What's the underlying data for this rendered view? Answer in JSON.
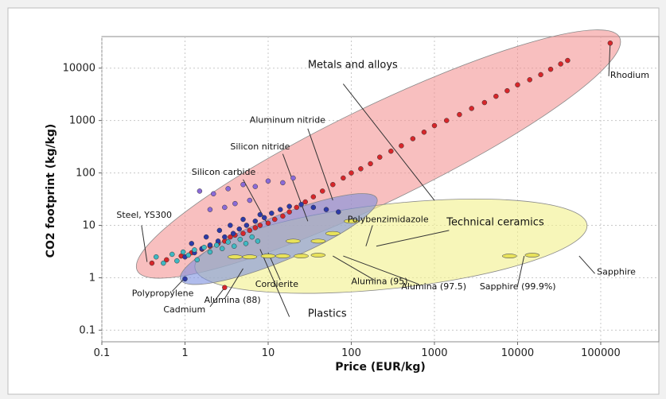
{
  "chart_data": {
    "type": "scatter",
    "xlabel": "Price (EUR/kg)",
    "ylabel": "CO2 footprint (kg/kg)",
    "xscale": "log",
    "yscale": "log",
    "xlim": [
      0.1,
      500000
    ],
    "ylim": [
      0.06,
      40000
    ],
    "x_ticks": [
      {
        "value": 0.1,
        "label": "0.1"
      },
      {
        "value": 1,
        "label": "1"
      },
      {
        "value": 10,
        "label": "10"
      },
      {
        "value": 100,
        "label": "100"
      },
      {
        "value": 1000,
        "label": "1000"
      },
      {
        "value": 10000,
        "label": "10000"
      },
      {
        "value": 100000,
        "label": "100000"
      }
    ],
    "y_ticks": [
      {
        "value": 0.1,
        "label": "0.1"
      },
      {
        "value": 1,
        "label": "1"
      },
      {
        "value": 10,
        "label": "10"
      },
      {
        "value": 100,
        "label": "100"
      },
      {
        "value": 1000,
        "label": "1000"
      },
      {
        "value": 10000,
        "label": "10000"
      }
    ],
    "grid": true,
    "families": [
      {
        "name": "Metals and alloys",
        "color": "#f28b8b",
        "opacity": 0.55,
        "x_range": [
          0.3,
          150000
        ],
        "y_range": [
          1.5,
          35000
        ]
      },
      {
        "name": "Technical ceramics",
        "color": "#f2f08a",
        "opacity": 0.6,
        "x_range": [
          1.5,
          60000
        ],
        "y_range": [
          1.6,
          10
        ]
      },
      {
        "name": "Plastics",
        "color": "#7b8fe0",
        "opacity": 0.6,
        "x_range": [
          1,
          180
        ],
        "y_range": [
          1,
          30
        ]
      }
    ],
    "series": [
      {
        "color": "#d7262a",
        "points": [
          [
            0.4,
            1.9
          ],
          [
            0.6,
            2.2
          ],
          [
            0.9,
            2.6
          ],
          [
            1.2,
            3
          ],
          [
            1.6,
            3.5
          ],
          [
            2,
            4
          ],
          [
            2.5,
            4.5
          ],
          [
            3,
            5
          ],
          [
            3.5,
            6
          ],
          [
            4,
            6.5
          ],
          [
            5,
            7
          ],
          [
            6,
            8
          ],
          [
            7,
            9
          ],
          [
            8,
            10
          ],
          [
            10,
            11
          ],
          [
            12,
            13
          ],
          [
            15,
            15
          ],
          [
            18,
            18
          ],
          [
            22,
            22
          ],
          [
            28,
            28
          ],
          [
            35,
            35
          ],
          [
            45,
            45
          ],
          [
            60,
            60
          ],
          [
            80,
            80
          ],
          [
            100,
            100
          ],
          [
            130,
            120
          ],
          [
            170,
            150
          ],
          [
            220,
            200
          ],
          [
            300,
            260
          ],
          [
            400,
            330
          ],
          [
            550,
            450
          ],
          [
            750,
            600
          ],
          [
            1000,
            800
          ],
          [
            1400,
            1000
          ],
          [
            2000,
            1300
          ],
          [
            2800,
            1700
          ],
          [
            4000,
            2200
          ],
          [
            5500,
            2900
          ],
          [
            7500,
            3700
          ],
          [
            10000,
            4800
          ],
          [
            14000,
            6000
          ],
          [
            19000,
            7500
          ],
          [
            25000,
            9500
          ],
          [
            33000,
            12000
          ],
          [
            40000,
            14000
          ],
          [
            130000,
            30000
          ],
          [
            3,
            0.65
          ]
        ]
      },
      {
        "color": "#2d3aa8",
        "points": [
          [
            1,
            2.5
          ],
          [
            1.3,
            3
          ],
          [
            1.6,
            3.6
          ],
          [
            2,
            4.2
          ],
          [
            2.5,
            5
          ],
          [
            3,
            6
          ],
          [
            3.8,
            7
          ],
          [
            4.5,
            8.5
          ],
          [
            5.5,
            10
          ],
          [
            7,
            12
          ],
          [
            9,
            14
          ],
          [
            11,
            17
          ],
          [
            14,
            20
          ],
          [
            18,
            23
          ],
          [
            25,
            25
          ],
          [
            35,
            22
          ],
          [
            50,
            20
          ],
          [
            70,
            18
          ],
          [
            1.2,
            4.5
          ],
          [
            1.8,
            6
          ],
          [
            2.6,
            8
          ],
          [
            3.5,
            10
          ],
          [
            5,
            13
          ],
          [
            8,
            16
          ],
          [
            1,
            0.95
          ]
        ]
      },
      {
        "color": "#8a6ad8",
        "points": [
          [
            1.5,
            45
          ],
          [
            2.2,
            40
          ],
          [
            3.3,
            50
          ],
          [
            5,
            60
          ],
          [
            7,
            55
          ],
          [
            10,
            70
          ],
          [
            15,
            65
          ],
          [
            20,
            80
          ],
          [
            2,
            20
          ],
          [
            3,
            22
          ],
          [
            4,
            26
          ],
          [
            6,
            30
          ]
        ]
      },
      {
        "color": "#3fb8c2",
        "points": [
          [
            0.45,
            2.5
          ],
          [
            0.55,
            1.9
          ],
          [
            0.7,
            2.8
          ],
          [
            0.8,
            2.1
          ],
          [
            0.95,
            3.1
          ],
          [
            1.1,
            2.7
          ],
          [
            1.3,
            3.4
          ],
          [
            1.4,
            2.2
          ],
          [
            1.7,
            3.8
          ],
          [
            2,
            3.1
          ],
          [
            2.4,
            4.2
          ],
          [
            2.8,
            3.6
          ],
          [
            3.3,
            4.8
          ],
          [
            3.9,
            4
          ],
          [
            4.6,
            5.4
          ],
          [
            5.4,
            4.5
          ],
          [
            6.4,
            6
          ],
          [
            7.5,
            5
          ]
        ]
      }
    ],
    "ceramic_marks": [
      [
        4,
        2.5
      ],
      [
        6,
        2.5
      ],
      [
        10,
        2.6
      ],
      [
        15,
        2.6
      ],
      [
        25,
        2.6
      ],
      [
        40,
        2.7
      ],
      [
        20,
        5
      ],
      [
        40,
        5
      ],
      [
        60,
        7
      ],
      [
        100,
        12
      ],
      [
        8000,
        2.6
      ],
      [
        15000,
        2.7
      ]
    ],
    "labels": [
      {
        "text": "Metals and alloys",
        "x": 30,
        "y": 10000,
        "size": 13
      },
      {
        "text": "Technical ceramics",
        "x": 1400,
        "y": 10,
        "size": 13
      },
      {
        "text": "Plastics",
        "x": 30,
        "y": 0.18,
        "size": 13
      },
      {
        "text": "Aluminum nitride",
        "x": 6,
        "y": 900,
        "size": 11
      },
      {
        "text": "Silicon nitride",
        "x": 3.5,
        "y": 280,
        "size": 11
      },
      {
        "text": "Silicon carbide",
        "x": 1.2,
        "y": 92,
        "size": 11
      },
      {
        "text": "Steel, YS300",
        "x": 0.15,
        "y": 14,
        "size": 11
      },
      {
        "text": "Polybenzimidazole",
        "x": 90,
        "y": 11.5,
        "size": 11
      },
      {
        "text": "Rhodium",
        "x": 130000,
        "y": 6500,
        "size": 11
      },
      {
        "text": "Sapphire",
        "x": 90000,
        "y": 1.15,
        "size": 11
      },
      {
        "text": "Sapphire (99.9%)",
        "x": 3500,
        "y": 0.6,
        "size": 11
      },
      {
        "text": "Alumina (97.5)",
        "x": 400,
        "y": 0.6,
        "size": 11
      },
      {
        "text": "Alumina (95)",
        "x": 100,
        "y": 0.75,
        "size": 11
      },
      {
        "text": "Cordierite",
        "x": 7,
        "y": 0.67,
        "size": 11
      },
      {
        "text": "Polypropylene",
        "x": 0.23,
        "y": 0.45,
        "size": 11
      },
      {
        "text": "Alumina (88)",
        "x": 1.7,
        "y": 0.33,
        "size": 11
      },
      {
        "text": "Cadmium",
        "x": 0.55,
        "y": 0.22,
        "size": 11
      }
    ],
    "callouts": [
      {
        "from": [
          80,
          5000
        ],
        "to": [
          1000,
          30
        ]
      },
      {
        "from": [
          1500,
          8
        ],
        "to": [
          200,
          4
        ]
      },
      {
        "from": [
          18,
          0.18
        ],
        "to": [
          8,
          3.5
        ]
      },
      {
        "from": [
          30,
          700
        ],
        "to": [
          60,
          30
        ]
      },
      {
        "from": [
          15,
          230
        ],
        "to": [
          30,
          12
        ]
      },
      {
        "from": [
          5,
          75
        ],
        "to": [
          10,
          10
        ]
      },
      {
        "from": [
          0.3,
          10
        ],
        "to": [
          0.35,
          2
        ]
      },
      {
        "from": [
          180,
          10
        ],
        "to": [
          150,
          4
        ]
      },
      {
        "from": [
          125000,
          7000
        ],
        "to": [
          130000,
          30000
        ]
      },
      {
        "from": [
          85000,
          1.2
        ],
        "to": [
          55000,
          2.6
        ]
      },
      {
        "from": [
          10000,
          0.7
        ],
        "to": [
          12000,
          2.6
        ]
      },
      {
        "from": [
          650,
          0.75
        ],
        "to": [
          80,
          2.6
        ]
      },
      {
        "from": [
          190,
          0.9
        ],
        "to": [
          60,
          2.6
        ]
      },
      {
        "from": [
          14,
          0.9
        ],
        "to": [
          10,
          3
        ]
      },
      {
        "from": [
          0.7,
          0.55
        ],
        "to": [
          1,
          1
        ]
      },
      {
        "from": [
          3,
          0.4
        ],
        "to": [
          5,
          1.5
        ]
      },
      {
        "from": [
          2,
          0.28
        ],
        "to": [
          3,
          0.65
        ]
      }
    ]
  }
}
